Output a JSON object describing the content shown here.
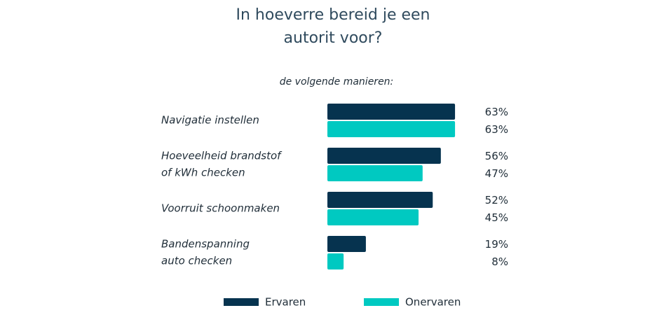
{
  "chart_data": {
    "type": "bar",
    "orientation": "horizontal",
    "title": [
      "In hoeverre bereid je een",
      "autorit voor?"
    ],
    "subtitle": "de volgende manieren:",
    "categories": [
      [
        "Navigatie instellen"
      ],
      [
        "Hoeveelheid brandstof",
        "of kWh checken"
      ],
      [
        "Voorruit schoonmaken"
      ],
      [
        "Bandenspanning",
        "auto checken"
      ]
    ],
    "series": [
      {
        "name": "Ervaren",
        "color": "#06334f",
        "values": [
          63,
          56,
          52,
          19
        ],
        "value_labels": [
          "63%",
          "56%",
          "52%",
          "19%"
        ]
      },
      {
        "name": "Onervaren",
        "color": "#00c9c1",
        "values": [
          63,
          47,
          45,
          8
        ],
        "value_labels": [
          "63%",
          "47%",
          "45%",
          "8%"
        ]
      }
    ]
  }
}
